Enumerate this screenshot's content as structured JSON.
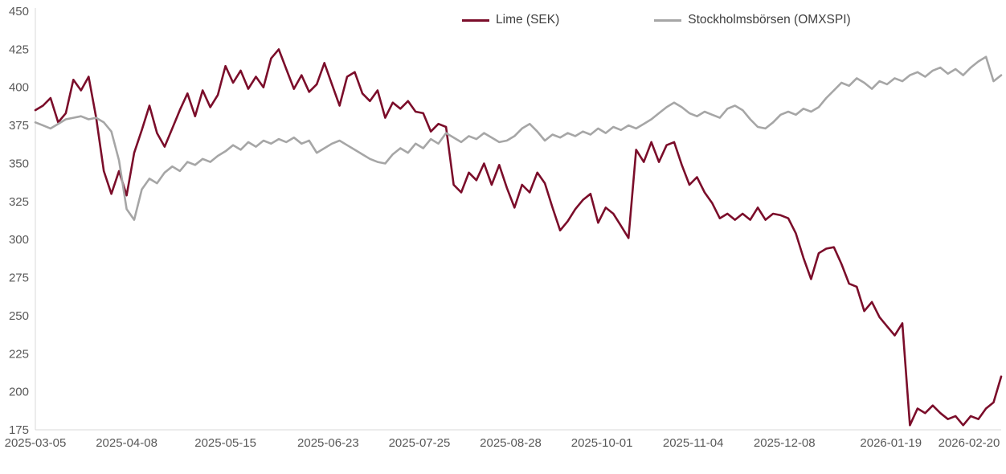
{
  "chart_data": {
    "type": "line",
    "title": "",
    "xlabel": "",
    "ylabel": "",
    "grid": false,
    "legend_position": "top-center",
    "background": "#ffffff",
    "y_axis": {
      "min": 175,
      "max": 450,
      "tick_step": 25,
      "tick_labels": [
        "175",
        "200",
        "225",
        "250",
        "275",
        "300",
        "325",
        "350",
        "375",
        "400",
        "425",
        "450"
      ]
    },
    "x_axis": {
      "index_range": [
        0,
        254
      ],
      "tick_indices": [
        0,
        24,
        50,
        77,
        101,
        125,
        149,
        173,
        197,
        225,
        249
      ],
      "tick_labels": [
        "2025-03-05",
        "2025-04-08",
        "2025-05-15",
        "2025-06-23",
        "2025-07-25",
        "2025-08-28",
        "2025-10-01",
        "2025-11-04",
        "2025-12-08",
        "2026-01-19",
        "2026-02-20"
      ]
    },
    "series": [
      {
        "name": "Lime (SEK)",
        "data_name": "lime-series-line",
        "color": "#7b0d2a",
        "sample_step": 2,
        "values": [
          385,
          388,
          393,
          377,
          383,
          405,
          398,
          407,
          380,
          345,
          330,
          345,
          329,
          357,
          372,
          388,
          370,
          361,
          373,
          385,
          396,
          381,
          398,
          387,
          395,
          414,
          403,
          411,
          399,
          407,
          400,
          419,
          425,
          412,
          399,
          408,
          397,
          402,
          416,
          402,
          388,
          407,
          410,
          396,
          391,
          398,
          380,
          390,
          386,
          391,
          384,
          383,
          371,
          376,
          374,
          336,
          331,
          344,
          339,
          350,
          336,
          349,
          334,
          321,
          336,
          331,
          344,
          337,
          321,
          306,
          312,
          320,
          326,
          330,
          311,
          321,
          317,
          309,
          301,
          359,
          351,
          364,
          351,
          362,
          364,
          349,
          336,
          341,
          331,
          324,
          314,
          317,
          313,
          317,
          313,
          321,
          313,
          317,
          316,
          314,
          304,
          288,
          274,
          291,
          294,
          295,
          284,
          271,
          269,
          253,
          259,
          249,
          243,
          237,
          245,
          178,
          189,
          186,
          191,
          186,
          182,
          184,
          178,
          184,
          182,
          189,
          193,
          210
        ]
      },
      {
        "name": "Stockholmsbörsen (OMXSPI)",
        "data_name": "omxspi-series-line",
        "color": "#a6a6a6",
        "sample_step": 2,
        "values": [
          377,
          375,
          373,
          376,
          379,
          380,
          381,
          379,
          380,
          377,
          371,
          352,
          320,
          313,
          333,
          340,
          337,
          344,
          348,
          345,
          351,
          349,
          353,
          351,
          355,
          358,
          362,
          359,
          364,
          361,
          365,
          363,
          366,
          364,
          367,
          363,
          365,
          357,
          360,
          363,
          365,
          362,
          359,
          356,
          353,
          351,
          350,
          356,
          360,
          357,
          363,
          360,
          366,
          363,
          370,
          367,
          364,
          368,
          366,
          370,
          367,
          364,
          365,
          368,
          373,
          376,
          371,
          365,
          369,
          367,
          370,
          368,
          371,
          369,
          373,
          370,
          374,
          372,
          375,
          373,
          376,
          379,
          383,
          387,
          390,
          387,
          383,
          381,
          384,
          382,
          380,
          386,
          388,
          385,
          379,
          374,
          373,
          377,
          382,
          384,
          382,
          386,
          384,
          387,
          393,
          398,
          403,
          401,
          406,
          403,
          399,
          404,
          402,
          406,
          404,
          408,
          410,
          407,
          411,
          413,
          409,
          412,
          408,
          413,
          417,
          420,
          404,
          408
        ]
      }
    ]
  },
  "colors": {
    "lime_line": "#7b0d2a",
    "omxspi_line": "#a6a6a6",
    "axis_line": "#d9d9d9",
    "tick_text": "#595959",
    "legend_text": "#404040",
    "background": "#ffffff"
  }
}
